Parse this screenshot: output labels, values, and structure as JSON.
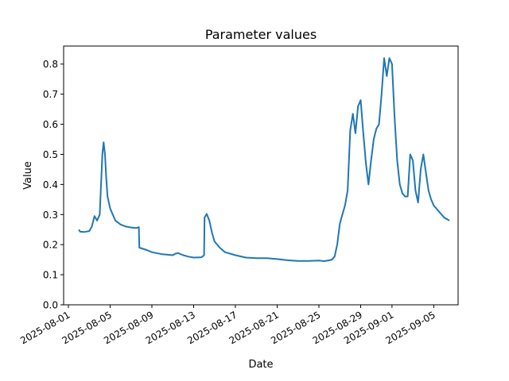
{
  "chart_data": {
    "type": "line",
    "title": "Parameter values",
    "xlabel": "Date",
    "ylabel": "Value",
    "xlim": [
      "2025-07-31T13:00",
      "2025-09-07T08:00"
    ],
    "ylim": [
      0,
      0.86
    ],
    "grid": false,
    "legend": "none",
    "x_ticks": [
      "2025-08-01",
      "2025-08-05",
      "2025-08-09",
      "2025-08-13",
      "2025-08-17",
      "2025-08-21",
      "2025-08-25",
      "2025-08-29",
      "2025-09-01",
      "2025-09-05"
    ],
    "y_ticks": [
      "0.0",
      "0.1",
      "0.2",
      "0.3",
      "0.4",
      "0.5",
      "0.6",
      "0.7",
      "0.8"
    ],
    "y_tick_values": [
      0.0,
      0.1,
      0.2,
      0.3,
      0.4,
      0.5,
      0.6,
      0.7,
      0.8
    ],
    "series": [
      {
        "color": "#1f77b4",
        "x": [
          "2025-08-02T00:00",
          "2025-08-02T03:00",
          "2025-08-02T12:00",
          "2025-08-03T00:00",
          "2025-08-03T06:00",
          "2025-08-03T12:00",
          "2025-08-03T18:00",
          "2025-08-04T00:00",
          "2025-08-04T06:00",
          "2025-08-04T09:00",
          "2025-08-04T12:00",
          "2025-08-04T15:00",
          "2025-08-04T18:00",
          "2025-08-05T00:00",
          "2025-08-05T06:00",
          "2025-08-05T12:00",
          "2025-08-06T00:00",
          "2025-08-06T12:00",
          "2025-08-07T00:00",
          "2025-08-07T12:00",
          "2025-08-07T18:00",
          "2025-08-07T19:00",
          "2025-08-08T12:00",
          "2025-08-09T00:00",
          "2025-08-10T00:00",
          "2025-08-11T00:00",
          "2025-08-11T06:00",
          "2025-08-11T12:00",
          "2025-08-12T00:00",
          "2025-08-12T12:00",
          "2025-08-13T00:00",
          "2025-08-13T18:00",
          "2025-08-14T00:00",
          "2025-08-14T01:00",
          "2025-08-14T06:00",
          "2025-08-14T12:00",
          "2025-08-14T18:00",
          "2025-08-15T00:00",
          "2025-08-15T12:00",
          "2025-08-16T00:00",
          "2025-08-17T00:00",
          "2025-08-18T00:00",
          "2025-08-19T00:00",
          "2025-08-20T00:00",
          "2025-08-21T00:00",
          "2025-08-22T00:00",
          "2025-08-23T00:00",
          "2025-08-24T00:00",
          "2025-08-25T00:00",
          "2025-08-25T12:00",
          "2025-08-26T00:00",
          "2025-08-26T06:00",
          "2025-08-26T12:00",
          "2025-08-26T18:00",
          "2025-08-27T00:00",
          "2025-08-27T06:00",
          "2025-08-27T12:00",
          "2025-08-27T18:00",
          "2025-08-28T00:00",
          "2025-08-28T06:00",
          "2025-08-28T12:00",
          "2025-08-28T18:00",
          "2025-08-29T00:00",
          "2025-08-29T06:00",
          "2025-08-29T12:00",
          "2025-08-29T18:00",
          "2025-08-30T00:00",
          "2025-08-30T06:00",
          "2025-08-30T12:00",
          "2025-08-30T18:00",
          "2025-08-31T00:00",
          "2025-08-31T06:00",
          "2025-08-31T12:00",
          "2025-08-31T18:00",
          "2025-09-01T00:00",
          "2025-09-01T06:00",
          "2025-09-01T12:00",
          "2025-09-01T18:00",
          "2025-09-02T00:00",
          "2025-09-02T06:00",
          "2025-09-02T12:00",
          "2025-09-02T18:00",
          "2025-09-03T00:00",
          "2025-09-03T06:00",
          "2025-09-03T12:00",
          "2025-09-03T18:00",
          "2025-09-04T00:00",
          "2025-09-04T06:00",
          "2025-09-04T12:00",
          "2025-09-04T18:00",
          "2025-09-05T00:00",
          "2025-09-05T12:00",
          "2025-09-06T00:00",
          "2025-09-06T12:00"
        ],
        "y": [
          0.25,
          0.243,
          0.242,
          0.245,
          0.26,
          0.295,
          0.28,
          0.3,
          0.5,
          0.54,
          0.5,
          0.42,
          0.36,
          0.32,
          0.3,
          0.28,
          0.267,
          0.26,
          0.257,
          0.255,
          0.258,
          0.19,
          0.182,
          0.175,
          0.168,
          0.165,
          0.17,
          0.172,
          0.165,
          0.16,
          0.157,
          0.158,
          0.165,
          0.29,
          0.302,
          0.28,
          0.24,
          0.21,
          0.19,
          0.175,
          0.165,
          0.157,
          0.155,
          0.155,
          0.152,
          0.148,
          0.146,
          0.146,
          0.147,
          0.145,
          0.148,
          0.15,
          0.16,
          0.2,
          0.27,
          0.3,
          0.33,
          0.38,
          0.58,
          0.635,
          0.57,
          0.66,
          0.68,
          0.57,
          0.47,
          0.4,
          0.48,
          0.55,
          0.585,
          0.6,
          0.7,
          0.82,
          0.76,
          0.82,
          0.8,
          0.62,
          0.48,
          0.4,
          0.37,
          0.36,
          0.36,
          0.5,
          0.48,
          0.38,
          0.34,
          0.45,
          0.5,
          0.44,
          0.38,
          0.35,
          0.33,
          0.31,
          0.29,
          0.28
        ]
      }
    ]
  }
}
